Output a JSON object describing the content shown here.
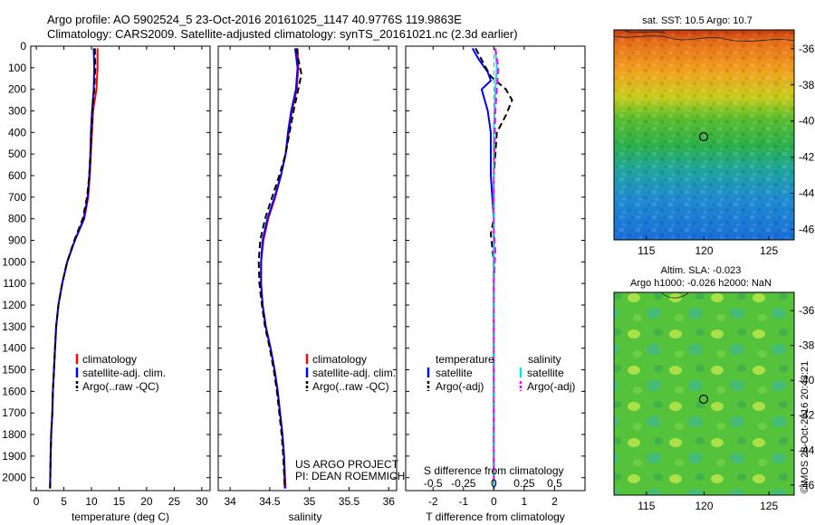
{
  "header": {
    "line1": "Argo profile: AO 5902524_5 23-Oct-2016 20161025_1147 40.9776S 119.9863E",
    "line2": "Climatology: CARS2009. Satellite-adjusted climatology: synTS_20161021.nc (2.3d earlier)"
  },
  "colors": {
    "climatology": "#ff0000",
    "satellite": "#0000ff",
    "argo": "#000000",
    "salinity_satellite": "#00e5ee",
    "salinity_argo": "#ff00ff"
  },
  "depth_axis": {
    "ticks": [
      0,
      100,
      200,
      300,
      400,
      500,
      600,
      700,
      800,
      900,
      1000,
      1100,
      1200,
      1300,
      1400,
      1500,
      1600,
      1700,
      1800,
      1900,
      2000
    ]
  },
  "chart_data": [
    {
      "type": "line",
      "xlabel": "temperature (deg C)",
      "xlim": [
        -1,
        31.5
      ],
      "ylim": [
        2060,
        0
      ],
      "xticks": [
        0,
        5,
        10,
        15,
        20,
        25,
        30
      ],
      "legend": [
        "climatology",
        "satellite-adj. clim.",
        "Argo(..raw -QC)"
      ],
      "series": [
        {
          "name": "climatology",
          "color": "climatology",
          "points": [
            [
              11.1,
              10
            ],
            [
              11.1,
              100
            ],
            [
              10.9,
              200
            ],
            [
              10.3,
              300
            ],
            [
              10.1,
              400
            ],
            [
              9.9,
              500
            ],
            [
              9.7,
              600
            ],
            [
              9.4,
              700
            ],
            [
              8.7,
              800
            ],
            [
              7.0,
              900
            ],
            [
              5.6,
              1000
            ],
            [
              4.7,
              1100
            ],
            [
              4.0,
              1200
            ],
            [
              3.6,
              1300
            ],
            [
              3.4,
              1400
            ],
            [
              3.2,
              1500
            ],
            [
              3.0,
              1600
            ],
            [
              2.9,
              1700
            ],
            [
              2.7,
              1800
            ],
            [
              2.6,
              1900
            ],
            [
              2.5,
              2050
            ]
          ]
        },
        {
          "name": "satellite-adj. clim.",
          "color": "satellite",
          "points": [
            [
              10.4,
              10
            ],
            [
              10.5,
              100
            ],
            [
              10.4,
              200
            ],
            [
              10.1,
              300
            ],
            [
              9.9,
              400
            ],
            [
              9.8,
              500
            ],
            [
              9.6,
              600
            ],
            [
              9.3,
              700
            ],
            [
              8.6,
              800
            ],
            [
              7.0,
              900
            ],
            [
              5.6,
              1000
            ],
            [
              4.7,
              1100
            ],
            [
              4.0,
              1200
            ],
            [
              3.6,
              1300
            ],
            [
              3.4,
              1400
            ],
            [
              3.2,
              1500
            ],
            [
              3.0,
              1600
            ],
            [
              2.9,
              1700
            ],
            [
              2.7,
              1800
            ],
            [
              2.6,
              1900
            ],
            [
              2.5,
              2050
            ]
          ]
        },
        {
          "name": "Argo(..raw -QC)",
          "color": "argo",
          "points": [
            [
              10.6,
              10
            ],
            [
              10.7,
              100
            ],
            [
              10.5,
              200
            ],
            [
              10.2,
              300
            ],
            [
              10.0,
              400
            ],
            [
              9.8,
              500
            ],
            [
              9.6,
              600
            ],
            [
              9.2,
              700
            ],
            [
              8.4,
              800
            ],
            [
              6.9,
              900
            ],
            [
              5.6,
              1000
            ],
            [
              4.7,
              1100
            ],
            [
              4.0,
              1200
            ],
            [
              3.6,
              1300
            ],
            [
              3.4,
              1400
            ],
            [
              3.2,
              1500
            ],
            [
              3.0,
              1600
            ],
            [
              2.9,
              1700
            ],
            [
              2.7,
              1800
            ],
            [
              2.6,
              1900
            ],
            [
              2.5,
              2050
            ]
          ]
        }
      ]
    },
    {
      "type": "line",
      "xlabel": "salinity",
      "xlim": [
        33.85,
        36.1
      ],
      "ylim": [
        2060,
        0
      ],
      "xticks": [
        34,
        34.5,
        35,
        35.5,
        36
      ],
      "legend": [
        "climatology",
        "satellite-adj. clim.",
        "Argo(..raw -QC)"
      ],
      "annotation": [
        "US ARGO PROJECT",
        "PI: DEAN ROEMMICH"
      ],
      "series": [
        {
          "name": "climatology",
          "color": "climatology",
          "points": [
            [
              34.85,
              10
            ],
            [
              34.86,
              100
            ],
            [
              34.84,
              200
            ],
            [
              34.78,
              300
            ],
            [
              34.74,
              400
            ],
            [
              34.7,
              500
            ],
            [
              34.64,
              600
            ],
            [
              34.57,
              700
            ],
            [
              34.48,
              800
            ],
            [
              34.42,
              900
            ],
            [
              34.39,
              1000
            ],
            [
              34.39,
              1100
            ],
            [
              34.41,
              1200
            ],
            [
              34.45,
              1300
            ],
            [
              34.51,
              1400
            ],
            [
              34.56,
              1500
            ],
            [
              34.6,
              1600
            ],
            [
              34.63,
              1700
            ],
            [
              34.66,
              1800
            ],
            [
              34.68,
              1900
            ],
            [
              34.7,
              2050
            ]
          ]
        },
        {
          "name": "satellite-adj. clim.",
          "color": "satellite",
          "points": [
            [
              34.82,
              10
            ],
            [
              34.85,
              100
            ],
            [
              34.83,
              200
            ],
            [
              34.77,
              300
            ],
            [
              34.73,
              400
            ],
            [
              34.7,
              500
            ],
            [
              34.64,
              600
            ],
            [
              34.56,
              700
            ],
            [
              34.47,
              800
            ],
            [
              34.41,
              900
            ],
            [
              34.39,
              1000
            ],
            [
              34.39,
              1100
            ],
            [
              34.41,
              1200
            ],
            [
              34.45,
              1300
            ],
            [
              34.51,
              1400
            ],
            [
              34.56,
              1500
            ],
            [
              34.6,
              1600
            ],
            [
              34.63,
              1700
            ],
            [
              34.66,
              1800
            ],
            [
              34.68,
              1900
            ],
            [
              34.69,
              2050
            ]
          ]
        },
        {
          "name": "Argo(..raw -QC)",
          "color": "argo",
          "points": [
            [
              34.84,
              10
            ],
            [
              34.86,
              60
            ],
            [
              34.9,
              130
            ],
            [
              34.86,
              200
            ],
            [
              34.8,
              300
            ],
            [
              34.75,
              400
            ],
            [
              34.7,
              500
            ],
            [
              34.62,
              600
            ],
            [
              34.53,
              700
            ],
            [
              34.44,
              800
            ],
            [
              34.38,
              900
            ],
            [
              34.36,
              1000
            ],
            [
              34.37,
              1100
            ],
            [
              34.4,
              1200
            ],
            [
              34.44,
              1300
            ],
            [
              34.5,
              1400
            ],
            [
              34.55,
              1500
            ],
            [
              34.59,
              1600
            ],
            [
              34.62,
              1700
            ],
            [
              34.65,
              1800
            ],
            [
              34.67,
              1900
            ],
            [
              34.69,
              2050
            ]
          ]
        }
      ]
    },
    {
      "type": "line",
      "xlabel": "T difference from climatology",
      "top_label": "S difference from climatology",
      "xlim": [
        -2.9,
        3.0
      ],
      "ylim": [
        2060,
        0
      ],
      "xticks": [
        -2,
        -1,
        0,
        1,
        2
      ],
      "top_ticks": [
        {
          "label": "-0.5",
          "at": -2
        },
        {
          "label": "-0.25",
          "at": -1
        },
        {
          "label": "0",
          "at": 0
        },
        {
          "label": "0.25",
          "at": 1
        },
        {
          "label": "0.5",
          "at": 2
        }
      ],
      "legend_left_title": "temperature",
      "legend_right_title": "salinity",
      "legend_left": [
        "satellite",
        "Argo(-adj)"
      ],
      "legend_right": [
        "satellite",
        "Argo(-adj)"
      ],
      "series": [
        {
          "name": "temperature satellite",
          "color": "satellite",
          "dash": false,
          "points": [
            [
              -0.7,
              10
            ],
            [
              -0.5,
              60
            ],
            [
              -0.2,
              120
            ],
            [
              -0.1,
              160
            ],
            [
              -0.4,
              200
            ],
            [
              -0.2,
              300
            ],
            [
              -0.1,
              400
            ],
            [
              -0.1,
              600
            ],
            [
              0,
              800
            ],
            [
              0,
              1000
            ],
            [
              0,
              1500
            ],
            [
              0,
              2050
            ]
          ]
        },
        {
          "name": "temperature Argo(-adj)",
          "color": "argo",
          "dash": true,
          "points": [
            [
              -0.6,
              10
            ],
            [
              -0.3,
              90
            ],
            [
              -0.1,
              140
            ],
            [
              0.4,
              200
            ],
            [
              0.6,
              250
            ],
            [
              0.4,
              320
            ],
            [
              0.1,
              400
            ],
            [
              0.0,
              600
            ],
            [
              0.0,
              800
            ],
            [
              -0.1,
              870
            ],
            [
              0,
              1000
            ],
            [
              0,
              2050
            ]
          ]
        },
        {
          "name": "salinity satellite",
          "color": "salinity_satellite",
          "dash": false,
          "points": [
            [
              0.05,
              10
            ],
            [
              0.1,
              100
            ],
            [
              0.05,
              200
            ],
            [
              0.0,
              400
            ],
            [
              0.0,
              800
            ],
            [
              0.0,
              1500
            ],
            [
              0.0,
              2050
            ]
          ]
        },
        {
          "name": "salinity Argo(-adj)",
          "color": "salinity_argo",
          "dash": true,
          "points": [
            [
              0.05,
              10
            ],
            [
              0.15,
              100
            ],
            [
              0.1,
              200
            ],
            [
              0.05,
              300
            ],
            [
              0.0,
              600
            ],
            [
              0.0,
              850
            ],
            [
              0.05,
              950
            ],
            [
              0.0,
              1100
            ],
            [
              0.0,
              2050
            ]
          ]
        }
      ]
    }
  ],
  "sst_map": {
    "title": "sat. SST: 10.5 Argo: 10.7",
    "xticks": [
      "115",
      "120",
      "125"
    ],
    "yticks": [
      "-36",
      "-38",
      "-40",
      "-42",
      "-44",
      "-46"
    ]
  },
  "sla_map": {
    "title1": "Altim. SLA: -0.023",
    "title2": "Argo h1000: -0.026 h2000: NaN",
    "xticks": [
      "115",
      "120",
      "125"
    ],
    "yticks": [
      "-36",
      "-38",
      "-40",
      "-42",
      "-44",
      "-46"
    ]
  },
  "credit": "©IMOS 28-Oct-2016 20:43:21"
}
